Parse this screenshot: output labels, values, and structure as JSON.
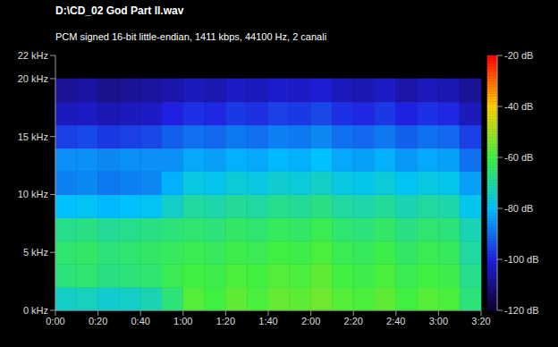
{
  "chart_data": {
    "type": "heatmap",
    "title": "D:\\CD_02 God Part II.wav",
    "subtitle": "PCM signed 16-bit little-endian, 1411 kbps, 44100 Hz, 2 canali",
    "xlim": [
      0,
      200
    ],
    "xticks": [
      {
        "value": 0,
        "label": "0:00"
      },
      {
        "value": 20,
        "label": "0:20"
      },
      {
        "value": 40,
        "label": "0:40"
      },
      {
        "value": 60,
        "label": "1:00"
      },
      {
        "value": 80,
        "label": "1:20"
      },
      {
        "value": 100,
        "label": "1:40"
      },
      {
        "value": 120,
        "label": "2:00"
      },
      {
        "value": 140,
        "label": "2:20"
      },
      {
        "value": 160,
        "label": "2:40"
      },
      {
        "value": 180,
        "label": "3:00"
      },
      {
        "value": 200,
        "label": "3:20"
      }
    ],
    "ylim": [
      0,
      22
    ],
    "yticks": [
      {
        "value": 0,
        "label": "0 kHz"
      },
      {
        "value": 5,
        "label": "5 kHz"
      },
      {
        "value": 10,
        "label": "10 kHz"
      },
      {
        "value": 15,
        "label": "15 kHz"
      },
      {
        "value": 20,
        "label": "20 kHz"
      },
      {
        "value": 22,
        "label": "22 kHz"
      }
    ],
    "grid": false,
    "x_edges": [
      0,
      10,
      20,
      30,
      40,
      50,
      60,
      70,
      80,
      90,
      100,
      110,
      120,
      130,
      140,
      150,
      160,
      170,
      180,
      190,
      200
    ],
    "y_edges": [
      0,
      2,
      4,
      6,
      8,
      10,
      12,
      14,
      16,
      18,
      20
    ],
    "cells": [
      [
        -74,
        -73,
        -75,
        -74,
        -72,
        -66,
        -58,
        -60,
        -57,
        -59,
        -56,
        -57,
        -55,
        -58,
        -59,
        -57,
        -60,
        -58,
        -59,
        -66
      ],
      [
        -66,
        -65,
        -67,
        -66,
        -65,
        -62,
        -60,
        -61,
        -59,
        -60,
        -58,
        -59,
        -57,
        -60,
        -61,
        -59,
        -62,
        -60,
        -61,
        -68
      ],
      [
        -65,
        -64,
        -66,
        -65,
        -64,
        -63,
        -62,
        -63,
        -61,
        -62,
        -60,
        -61,
        -59,
        -62,
        -63,
        -61,
        -64,
        -62,
        -63,
        -70
      ],
      [
        -68,
        -67,
        -69,
        -68,
        -67,
        -66,
        -65,
        -66,
        -64,
        -65,
        -63,
        -64,
        -62,
        -65,
        -66,
        -64,
        -67,
        -65,
        -66,
        -72
      ],
      [
        -80,
        -79,
        -81,
        -80,
        -79,
        -74,
        -70,
        -71,
        -69,
        -70,
        -68,
        -69,
        -67,
        -70,
        -71,
        -69,
        -72,
        -70,
        -71,
        -78
      ],
      [
        -88,
        -87,
        -89,
        -88,
        -87,
        -82,
        -77,
        -78,
        -76,
        -77,
        -75,
        -76,
        -74,
        -77,
        -78,
        -76,
        -79,
        -77,
        -78,
        -84
      ],
      [
        -86,
        -86,
        -87,
        -86,
        -86,
        -86,
        -83,
        -84,
        -82,
        -83,
        -81,
        -82,
        -80,
        -83,
        -84,
        -82,
        -85,
        -83,
        -84,
        -90
      ],
      [
        -96,
        -95,
        -97,
        -96,
        -95,
        -92,
        -90,
        -91,
        -89,
        -90,
        -88,
        -89,
        -87,
        -90,
        -91,
        -89,
        -92,
        -90,
        -91,
        -96
      ],
      [
        -104,
        -103,
        -105,
        -104,
        -103,
        -100,
        -98,
        -99,
        -97,
        -98,
        -96,
        -97,
        -95,
        -98,
        -99,
        -97,
        -100,
        -98,
        -99,
        -104
      ],
      [
        -108,
        -107,
        -109,
        -108,
        -107,
        -106,
        -104,
        -105,
        -103,
        -104,
        -102,
        -103,
        -101,
        -104,
        -105,
        -103,
        -106,
        -104,
        -105,
        -108
      ]
    ],
    "colorbar": {
      "range": [
        -120,
        -20
      ],
      "ticks": [
        {
          "value": -20,
          "label": "-20 dB"
        },
        {
          "value": -40,
          "label": "-40 dB"
        },
        {
          "value": -60,
          "label": "-60 dB"
        },
        {
          "value": -80,
          "label": "-80 dB"
        },
        {
          "value": -100,
          "label": "-100 dB"
        },
        {
          "value": -120,
          "label": "-120 dB"
        }
      ]
    }
  }
}
